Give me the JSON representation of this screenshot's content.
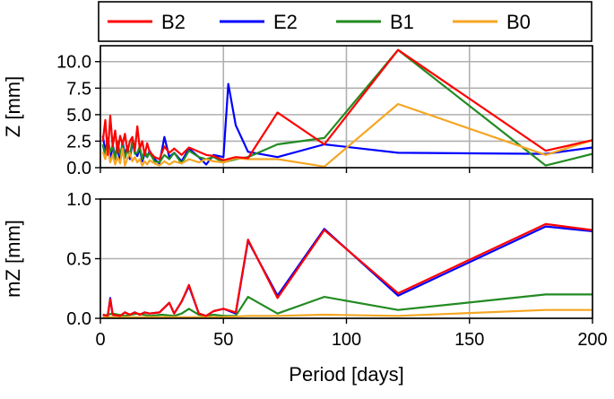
{
  "chart_data": [
    {
      "type": "line",
      "panel": "top",
      "xlabel": "",
      "ylabel": "Z [mm]",
      "xlim": [
        0,
        200
      ],
      "ylim": [
        0,
        11.5
      ],
      "xticks": [
        "0",
        "50",
        "100",
        "150",
        "200"
      ],
      "xtick_values": [
        0,
        50,
        100,
        150,
        200
      ],
      "yticks": [
        "0.0",
        "2.5",
        "5.0",
        "7.5",
        "10.0"
      ],
      "ytick_values": [
        0,
        2.5,
        5,
        7.5,
        10
      ],
      "grid": true,
      "series": [
        {
          "name": "E2",
          "color": "#0000ff",
          "x": [
            1,
            2,
            3,
            4,
            5,
            6,
            7,
            8,
            9,
            10,
            11,
            12,
            13,
            14,
            15,
            16,
            17,
            18,
            19,
            20,
            22,
            24,
            26,
            28,
            30,
            33,
            36,
            40,
            43,
            46,
            50,
            52,
            55,
            60,
            72,
            91,
            121,
            181,
            200
          ],
          "y": [
            3.0,
            1.5,
            2.8,
            0.6,
            2.2,
            1.0,
            1.8,
            0.5,
            2.5,
            1.2,
            2.0,
            0.8,
            2.4,
            1.5,
            1.1,
            1.8,
            0.6,
            1.3,
            1.0,
            1.6,
            0.8,
            0.4,
            2.9,
            1.0,
            1.4,
            0.6,
            1.8,
            1.0,
            0.3,
            1.2,
            1.0,
            7.9,
            4.0,
            1.5,
            1.0,
            2.2,
            1.4,
            1.3,
            1.9
          ]
        },
        {
          "name": "B1",
          "color": "#228b22",
          "x": [
            1,
            2,
            3,
            4,
            5,
            6,
            7,
            8,
            9,
            10,
            11,
            12,
            13,
            14,
            15,
            16,
            17,
            18,
            19,
            20,
            22,
            24,
            26,
            28,
            30,
            33,
            36,
            40,
            43,
            46,
            50,
            55,
            60,
            72,
            91,
            121,
            181,
            200
          ],
          "y": [
            2.2,
            1.0,
            2.8,
            1.5,
            2.0,
            0.8,
            2.5,
            1.2,
            2.2,
            0.9,
            1.8,
            1.1,
            2.6,
            1.3,
            1.4,
            2.0,
            0.8,
            1.6,
            1.0,
            1.4,
            0.6,
            0.5,
            1.2,
            0.8,
            1.4,
            0.4,
            1.6,
            1.0,
            0.8,
            1.0,
            0.5,
            0.8,
            1.0,
            2.2,
            2.8,
            11.1,
            0.2,
            1.3
          ]
        },
        {
          "name": "B0",
          "color": "#f5a623",
          "x": [
            1,
            2,
            3,
            4,
            5,
            6,
            7,
            8,
            9,
            10,
            11,
            12,
            13,
            14,
            15,
            16,
            17,
            18,
            19,
            20,
            22,
            24,
            26,
            28,
            30,
            33,
            36,
            40,
            43,
            46,
            50,
            55,
            60,
            72,
            91,
            121,
            181,
            200
          ],
          "y": [
            1.5,
            0.8,
            2.0,
            0.5,
            1.2,
            0.3,
            1.0,
            0.4,
            1.8,
            0.2,
            0.9,
            1.4,
            0.6,
            1.0,
            0.5,
            0.8,
            0.2,
            0.6,
            0.3,
            0.7,
            0.4,
            0.2,
            0.6,
            0.3,
            0.6,
            0.4,
            0.8,
            0.5,
            0.8,
            0.6,
            0.5,
            0.9,
            0.8,
            0.8,
            0.1,
            6.0,
            1.2,
            2.6
          ]
        },
        {
          "name": "B2",
          "color": "#ff0000",
          "x": [
            1,
            2,
            3,
            4,
            5,
            6,
            7,
            8,
            9,
            10,
            11,
            12,
            13,
            14,
            15,
            16,
            17,
            18,
            19,
            20,
            22,
            24,
            26,
            28,
            30,
            33,
            36,
            40,
            43,
            46,
            50,
            55,
            60,
            72,
            91,
            121,
            181,
            200
          ],
          "y": [
            2.5,
            4.5,
            1.2,
            4.9,
            2.0,
            3.5,
            1.4,
            3.0,
            2.2,
            3.2,
            1.5,
            2.5,
            2.9,
            1.6,
            3.9,
            1.8,
            2.5,
            1.2,
            2.3,
            1.5,
            1.0,
            0.8,
            2.0,
            1.4,
            1.8,
            1.2,
            1.9,
            1.5,
            1.2,
            1.1,
            0.7,
            1.0,
            0.9,
            5.2,
            2.2,
            11.1,
            1.6,
            2.6
          ]
        }
      ]
    },
    {
      "type": "line",
      "panel": "bottom",
      "xlabel": "Period [days]",
      "ylabel": "mZ [mm]",
      "xlim": [
        0,
        200
      ],
      "ylim": [
        0,
        1.0
      ],
      "xticks": [
        "0",
        "50",
        "100",
        "150",
        "200"
      ],
      "xtick_values": [
        0,
        50,
        100,
        150,
        200
      ],
      "yticks": [
        "0.0",
        "0.5",
        "1.0"
      ],
      "ytick_values": [
        0,
        0.5,
        1.0
      ],
      "grid": true,
      "series": [
        {
          "name": "E2",
          "color": "#0000ff",
          "x": [
            1,
            3,
            4,
            5,
            8,
            10,
            12,
            14,
            16,
            18,
            20,
            24,
            28,
            30,
            33,
            36,
            40,
            43,
            46,
            50,
            55,
            60,
            72,
            91,
            121,
            181,
            200
          ],
          "y": [
            0.03,
            0.02,
            0.17,
            0.03,
            0.02,
            0.05,
            0.03,
            0.05,
            0.03,
            0.05,
            0.04,
            0.05,
            0.13,
            0.04,
            0.14,
            0.27,
            0.04,
            0.02,
            0.06,
            0.08,
            0.04,
            0.65,
            0.19,
            0.75,
            0.19,
            0.77,
            0.73
          ]
        },
        {
          "name": "B1",
          "color": "#228b22",
          "x": [
            1,
            5,
            10,
            15,
            20,
            25,
            30,
            33,
            36,
            40,
            43,
            46,
            50,
            55,
            60,
            72,
            91,
            121,
            181,
            200
          ],
          "y": [
            0.02,
            0.04,
            0.02,
            0.04,
            0.02,
            0.03,
            0.02,
            0.04,
            0.08,
            0.03,
            0.02,
            0.03,
            0.02,
            0.02,
            0.18,
            0.04,
            0.18,
            0.07,
            0.2,
            0.2
          ]
        },
        {
          "name": "B0",
          "color": "#f5a623",
          "x": [
            1,
            10,
            20,
            30,
            40,
            50,
            60,
            72,
            91,
            121,
            181,
            200
          ],
          "y": [
            0.01,
            0.01,
            0.01,
            0.01,
            0.01,
            0.01,
            0.02,
            0.02,
            0.03,
            0.02,
            0.07,
            0.07
          ]
        },
        {
          "name": "B2",
          "color": "#ff0000",
          "x": [
            1,
            3,
            4,
            5,
            8,
            10,
            12,
            14,
            16,
            18,
            20,
            24,
            28,
            30,
            33,
            36,
            40,
            43,
            46,
            50,
            55,
            60,
            72,
            91,
            121,
            181,
            200
          ],
          "y": [
            0.03,
            0.02,
            0.16,
            0.03,
            0.02,
            0.05,
            0.03,
            0.05,
            0.03,
            0.05,
            0.04,
            0.05,
            0.13,
            0.04,
            0.14,
            0.28,
            0.04,
            0.02,
            0.06,
            0.08,
            0.05,
            0.66,
            0.17,
            0.74,
            0.21,
            0.79,
            0.74
          ]
        }
      ]
    }
  ],
  "legend": {
    "location": "top",
    "items": [
      {
        "label": "B2",
        "color": "#ff0000"
      },
      {
        "label": "E2",
        "color": "#0000ff"
      },
      {
        "label": "B1",
        "color": "#228b22"
      },
      {
        "label": "B0",
        "color": "#f5a623"
      }
    ]
  }
}
